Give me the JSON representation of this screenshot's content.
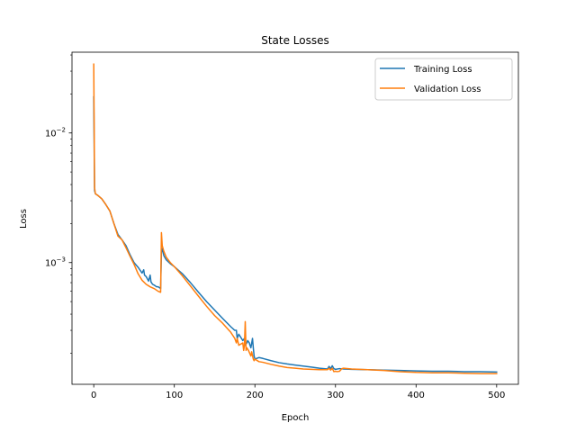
{
  "chart_data": {
    "type": "line",
    "title": "State Losses",
    "xlabel": "Epoch",
    "ylabel": "Loss",
    "xlim": [
      -27,
      527
    ],
    "ylim": [
      0.000115,
      0.042
    ],
    "yscale": "log",
    "xticks": [
      0,
      100,
      200,
      300,
      400,
      500
    ],
    "xtick_labels": [
      "0",
      "100",
      "200",
      "300",
      "400",
      "500"
    ],
    "yticks": [
      0.01,
      0.001
    ],
    "ytick_labels": [
      "10^{-2}",
      "10^{-3}"
    ],
    "ytick_parts": [
      {
        "base": "10",
        "exp": "−2"
      },
      {
        "base": "10",
        "exp": "−3"
      }
    ],
    "grid": false,
    "legend_position": "top-right",
    "series": [
      {
        "name": "Training Loss",
        "color": "#1f77b4",
        "x": [
          0,
          1,
          2,
          5,
          10,
          15,
          20,
          25,
          30,
          35,
          40,
          45,
          50,
          55,
          60,
          62,
          63,
          65,
          68,
          70,
          71,
          73,
          75,
          78,
          80,
          83,
          84,
          85,
          87,
          90,
          95,
          100,
          110,
          120,
          130,
          140,
          150,
          160,
          170,
          175,
          177,
          178,
          180,
          185,
          187,
          188,
          190,
          191,
          193,
          195,
          197,
          198,
          199,
          200,
          205,
          210,
          220,
          230,
          240,
          250,
          260,
          270,
          280,
          290,
          292,
          294,
          296,
          298,
          300,
          305,
          310,
          320,
          340,
          360,
          380,
          400,
          420,
          440,
          460,
          480,
          500
        ],
        "y": [
          0.019,
          0.0036,
          0.0034,
          0.0033,
          0.0031,
          0.0028,
          0.0025,
          0.002,
          0.00165,
          0.0015,
          0.00135,
          0.00115,
          0.001,
          0.00092,
          0.00083,
          0.00088,
          0.0008,
          0.00078,
          0.00072,
          0.0008,
          0.00071,
          0.00068,
          0.00067,
          0.00065,
          0.00065,
          0.00063,
          0.0012,
          0.00128,
          0.00113,
          0.00105,
          0.00098,
          0.00093,
          0.00082,
          0.0007,
          0.00059,
          0.0005,
          0.00043,
          0.00037,
          0.00032,
          0.0003,
          0.0003,
          0.00026,
          0.00028,
          0.00025,
          0.00026,
          0.00023,
          0.00024,
          0.00025,
          0.00024,
          0.00022,
          0.00026,
          0.00022,
          0.00019,
          0.00018,
          0.000185,
          0.000182,
          0.000175,
          0.000169,
          0.000165,
          0.000162,
          0.000159,
          0.000156,
          0.000153,
          0.000151,
          0.000158,
          0.000152,
          0.00016,
          0.000152,
          0.00015,
          0.000152,
          0.000151,
          0.00015,
          0.000149,
          0.000148,
          0.000147,
          0.000146,
          0.000145,
          0.000145,
          0.000144,
          0.000144,
          0.000143
        ]
      },
      {
        "name": "Validation Loss",
        "color": "#ff7f0e",
        "x": [
          0,
          1,
          2,
          5,
          10,
          15,
          20,
          25,
          30,
          35,
          40,
          45,
          50,
          55,
          60,
          65,
          70,
          75,
          80,
          83,
          84,
          85,
          87,
          90,
          95,
          100,
          110,
          120,
          130,
          140,
          150,
          160,
          170,
          175,
          177,
          178,
          180,
          185,
          186,
          187,
          188,
          189,
          190,
          192,
          195,
          196,
          198,
          199,
          200,
          205,
          210,
          220,
          230,
          240,
          250,
          260,
          270,
          280,
          290,
          292,
          294,
          296,
          298,
          300,
          302,
          305,
          308,
          310,
          320,
          340,
          360,
          380,
          400,
          420,
          440,
          460,
          480,
          500
        ],
        "y": [
          0.034,
          0.0038,
          0.0034,
          0.0033,
          0.0031,
          0.0028,
          0.0025,
          0.002,
          0.0016,
          0.0015,
          0.0013,
          0.00112,
          0.00097,
          0.00082,
          0.00073,
          0.00068,
          0.00065,
          0.00063,
          0.0006,
          0.00059,
          0.0017,
          0.00135,
          0.00122,
          0.0011,
          0.001,
          0.00093,
          0.00079,
          0.00066,
          0.00055,
          0.00046,
          0.00039,
          0.00034,
          0.00029,
          0.00026,
          0.00024,
          0.00026,
          0.00023,
          0.00024,
          0.00021,
          0.00023,
          0.00035,
          0.00021,
          0.00022,
          0.00021,
          0.00019,
          0.000205,
          0.00018,
          0.000175,
          0.00018,
          0.000172,
          0.00017,
          0.000164,
          0.000159,
          0.000155,
          0.000153,
          0.000151,
          0.00015,
          0.000149,
          0.000149,
          0.000153,
          0.000148,
          0.000153,
          0.000144,
          0.000145,
          0.000144,
          0.000145,
          0.000152,
          0.000153,
          0.000151,
          0.000149,
          0.000147,
          0.000144,
          0.000142,
          0.000141,
          0.000141,
          0.00014,
          0.000139,
          0.000139
        ]
      }
    ]
  }
}
